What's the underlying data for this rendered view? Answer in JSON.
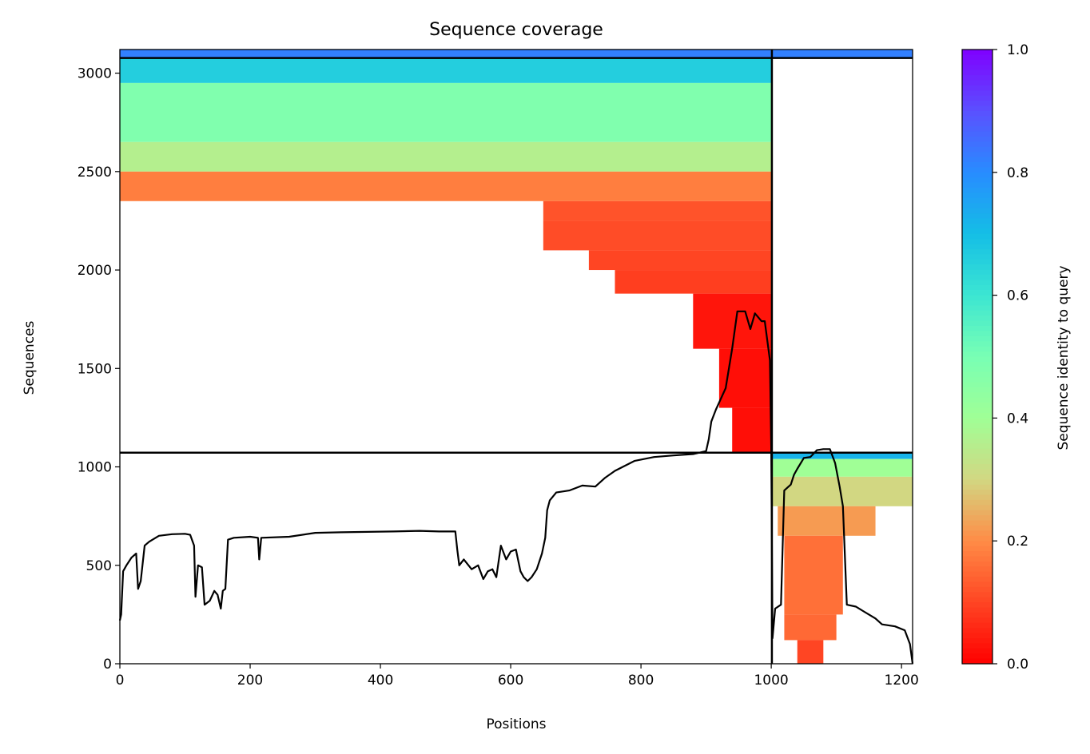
{
  "chart_data": {
    "type": "heatmap",
    "title": "Sequence coverage",
    "xlabel": "Positions",
    "ylabel": "Sequences",
    "xlim": [
      0,
      1217
    ],
    "ylim": [
      0,
      3120
    ],
    "x_ticks": [
      0,
      200,
      400,
      600,
      800,
      1000,
      1200
    ],
    "x_tick_labels": [
      "0",
      "200",
      "400",
      "600",
      "800",
      "1000",
      "1200"
    ],
    "y_ticks": [
      0,
      500,
      1000,
      1500,
      2000,
      2500,
      3000
    ],
    "y_tick_labels": [
      "0",
      "500",
      "1000",
      "1500",
      "2000",
      "2500",
      "3000"
    ],
    "colorbar": {
      "label": "Sequence identity to query",
      "range": [
        0,
        1
      ],
      "colormap": "rainbow_r",
      "ticks": [
        0,
        0.2,
        0.4,
        0.6,
        0.8,
        1.0
      ],
      "tick_labels": [
        "0.0",
        "0.2",
        "0.4",
        "0.6",
        "0.8",
        "1.0"
      ]
    },
    "domain_boundaries": {
      "vertical_x": 1001,
      "horizontal_y": [
        1072,
        3077
      ]
    },
    "coverage_blocks": [
      {
        "x0": 0,
        "x1": 1000,
        "y0": 3077,
        "y1": 3120,
        "identity": 0.82
      },
      {
        "x0": 1000,
        "x1": 1217,
        "y0": 3077,
        "y1": 3120,
        "identity": 0.82
      },
      {
        "x0": 0,
        "x1": 1000,
        "y0": 2950,
        "y1": 3077,
        "identity": 0.66
      },
      {
        "x0": 0,
        "x1": 1000,
        "y0": 2650,
        "y1": 2950,
        "identity": 0.48
      },
      {
        "x0": 0,
        "x1": 1000,
        "y0": 2500,
        "y1": 2650,
        "identity": 0.36
      },
      {
        "x0": 0,
        "x1": 1000,
        "y0": 2350,
        "y1": 2500,
        "identity": 0.18
      },
      {
        "x0": 650,
        "x1": 1000,
        "y0": 2250,
        "y1": 2350,
        "identity": 0.12
      },
      {
        "x0": 650,
        "x1": 1000,
        "y0": 2100,
        "y1": 2250,
        "identity": 0.11
      },
      {
        "x0": 720,
        "x1": 1000,
        "y0": 2000,
        "y1": 2100,
        "identity": 0.1
      },
      {
        "x0": 760,
        "x1": 1000,
        "y0": 1880,
        "y1": 2000,
        "identity": 0.09
      },
      {
        "x0": 880,
        "x1": 1000,
        "y0": 1600,
        "y1": 1880,
        "identity": 0.03
      },
      {
        "x0": 920,
        "x1": 1000,
        "y0": 1300,
        "y1": 1600,
        "identity": 0.02
      },
      {
        "x0": 940,
        "x1": 1000,
        "y0": 1072,
        "y1": 1300,
        "identity": 0.02
      },
      {
        "x0": 1000,
        "x1": 1217,
        "y0": 1040,
        "y1": 1072,
        "identity": 0.72
      },
      {
        "x0": 1000,
        "x1": 1217,
        "y0": 950,
        "y1": 1040,
        "identity": 0.4
      },
      {
        "x0": 1000,
        "x1": 1217,
        "y0": 800,
        "y1": 950,
        "identity": 0.3
      },
      {
        "x0": 1010,
        "x1": 1160,
        "y0": 650,
        "y1": 800,
        "identity": 0.22
      },
      {
        "x0": 1020,
        "x1": 1110,
        "y0": 250,
        "y1": 650,
        "identity": 0.16
      },
      {
        "x0": 1020,
        "x1": 1100,
        "y0": 120,
        "y1": 250,
        "identity": 0.15
      },
      {
        "x0": 1040,
        "x1": 1080,
        "y0": 0,
        "y1": 120,
        "identity": 0.1
      }
    ],
    "coverage_line": [
      [
        0,
        220
      ],
      [
        2,
        250
      ],
      [
        5,
        470
      ],
      [
        10,
        500
      ],
      [
        18,
        540
      ],
      [
        25,
        560
      ],
      [
        28,
        380
      ],
      [
        32,
        420
      ],
      [
        38,
        600
      ],
      [
        45,
        620
      ],
      [
        60,
        650
      ],
      [
        80,
        658
      ],
      [
        100,
        660
      ],
      [
        108,
        655
      ],
      [
        114,
        600
      ],
      [
        116,
        340
      ],
      [
        120,
        500
      ],
      [
        126,
        490
      ],
      [
        130,
        300
      ],
      [
        138,
        320
      ],
      [
        145,
        370
      ],
      [
        150,
        350
      ],
      [
        155,
        280
      ],
      [
        158,
        370
      ],
      [
        162,
        380
      ],
      [
        166,
        630
      ],
      [
        175,
        640
      ],
      [
        200,
        645
      ],
      [
        212,
        640
      ],
      [
        214,
        530
      ],
      [
        217,
        640
      ],
      [
        260,
        645
      ],
      [
        300,
        665
      ],
      [
        340,
        668
      ],
      [
        380,
        670
      ],
      [
        420,
        672
      ],
      [
        460,
        675
      ],
      [
        490,
        672
      ],
      [
        515,
        672
      ],
      [
        518,
        580
      ],
      [
        521,
        500
      ],
      [
        528,
        530
      ],
      [
        540,
        480
      ],
      [
        550,
        500
      ],
      [
        558,
        430
      ],
      [
        565,
        470
      ],
      [
        572,
        480
      ],
      [
        578,
        440
      ],
      [
        585,
        600
      ],
      [
        593,
        530
      ],
      [
        600,
        570
      ],
      [
        608,
        580
      ],
      [
        615,
        470
      ],
      [
        620,
        440
      ],
      [
        626,
        420
      ],
      [
        632,
        440
      ],
      [
        640,
        480
      ],
      [
        648,
        560
      ],
      [
        653,
        640
      ],
      [
        656,
        780
      ],
      [
        660,
        830
      ],
      [
        670,
        870
      ],
      [
        690,
        880
      ],
      [
        710,
        905
      ],
      [
        730,
        900
      ],
      [
        745,
        945
      ],
      [
        760,
        980
      ],
      [
        790,
        1030
      ],
      [
        820,
        1050
      ],
      [
        850,
        1058
      ],
      [
        880,
        1065
      ],
      [
        900,
        1080
      ],
      [
        904,
        1140
      ],
      [
        908,
        1230
      ],
      [
        915,
        1290
      ],
      [
        930,
        1400
      ],
      [
        940,
        1600
      ],
      [
        948,
        1790
      ],
      [
        960,
        1790
      ],
      [
        968,
        1700
      ],
      [
        975,
        1780
      ],
      [
        985,
        1740
      ],
      [
        990,
        1740
      ],
      [
        998,
        1540
      ],
      [
        1000,
        1100
      ],
      [
        1002,
        130
      ],
      [
        1006,
        280
      ],
      [
        1015,
        300
      ],
      [
        1020,
        880
      ],
      [
        1030,
        910
      ],
      [
        1035,
        960
      ],
      [
        1040,
        990
      ],
      [
        1050,
        1045
      ],
      [
        1060,
        1050
      ],
      [
        1070,
        1085
      ],
      [
        1080,
        1090
      ],
      [
        1090,
        1090
      ],
      [
        1098,
        1020
      ],
      [
        1105,
        900
      ],
      [
        1110,
        800
      ],
      [
        1116,
        300
      ],
      [
        1130,
        290
      ],
      [
        1140,
        270
      ],
      [
        1150,
        250
      ],
      [
        1160,
        230
      ],
      [
        1170,
        200
      ],
      [
        1190,
        190
      ],
      [
        1205,
        170
      ],
      [
        1213,
        100
      ],
      [
        1217,
        0
      ]
    ]
  }
}
